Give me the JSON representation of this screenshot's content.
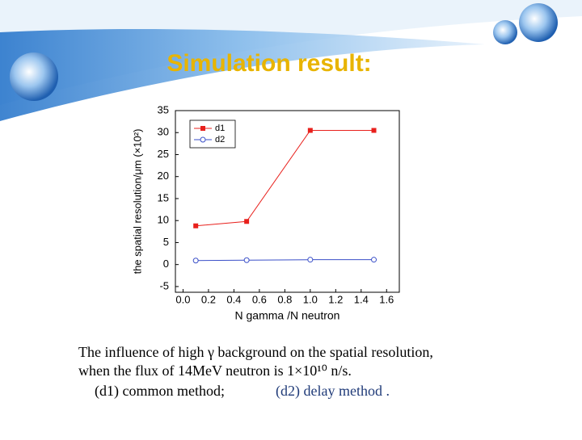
{
  "slide_title": "Simulation result:",
  "chart_data": {
    "type": "line",
    "x_label": "N gamma /N neutron",
    "y_label": "the spatial resolution/μm  (×10²)",
    "x": [
      0.1,
      0.5,
      1.0,
      1.5
    ],
    "series": [
      {
        "name": "d1",
        "color": "#e8201c",
        "marker": "square",
        "values": [
          8.8,
          9.8,
          30.5,
          30.5
        ]
      },
      {
        "name": "d2",
        "color": "#3a4fc8",
        "marker": "circle",
        "values": [
          0.9,
          1.0,
          1.1,
          1.1
        ]
      }
    ],
    "xlim": [
      -0.06,
      1.7
    ],
    "ylim": [
      -6.3,
      35
    ],
    "xticks": [
      {
        "value": 0,
        "label": "0.0"
      },
      0.2,
      0.4,
      0.6,
      0.8,
      {
        "value": 1,
        "label": "1.0"
      },
      1.2,
      1.4,
      1.6
    ],
    "yticks": [
      -5,
      0,
      5,
      10,
      15,
      20,
      25,
      30,
      35
    ],
    "legend": "upper left"
  },
  "caption": {
    "line1": "The influence of high γ background on the spatial  resolution,",
    "line2": "when the flux of 14MeV neutron is 1×10¹⁰ n/s.",
    "item1": "(d1)  common method;",
    "item2": "(d2)  delay  method ."
  }
}
